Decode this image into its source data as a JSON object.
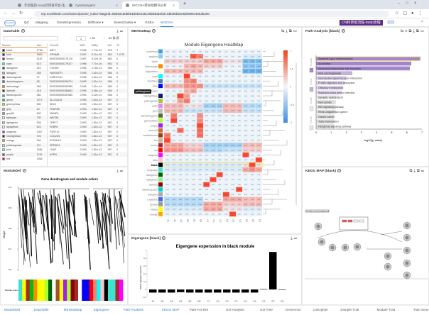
{
  "browser": {
    "tabs": [
      "华创医药-nova云转录平台-生...",
      "CytoNavigator",
      "WGCNA转录组模块分析"
    ],
    "url": "erp.novelbrain.com/transcriptome_index?stageId=65b0aca0bb91805e236c26b9&taskId=65b35b32e5d4908c4563b260"
  },
  "nav": {
    "logo": "Novel Brain",
    "items": [
      "QC",
      "Mapping",
      "GeneExpression",
      "DiffGene ▾",
      "SeriesCluster ▾",
      "GSEA",
      "WGCNA"
    ],
    "banner": "CN转录组流程-fastp流程",
    "back": "返回"
  },
  "datatable": {
    "title": "DataTable",
    "page": "1",
    "total_pages": "/ 35",
    "page_size": "50 条/页",
    "module_headers": [
      "Module",
      "Size"
    ],
    "modules": [
      [
        "black",
        "1798",
        "#000000"
      ],
      [
        "blue",
        "3900",
        "#0000ff"
      ],
      [
        "brown",
        "3187",
        "#a52a2a"
      ],
      [
        "cyan",
        "613",
        "#00ffff"
      ],
      [
        "darkgreen",
        "421",
        "#006400"
      ],
      [
        "darkgrey",
        "339",
        "#a9a9a9"
      ],
      [
        "darkmagenta",
        "47",
        "#8b008b"
      ],
      [
        "darkolivegreen",
        "83",
        "#556b2f"
      ],
      [
        "darkorange",
        "266",
        "#ff8c00"
      ],
      [
        "darkred",
        "418",
        "#8b0000"
      ],
      [
        "darkturquoise",
        "382",
        "#00ced1"
      ],
      [
        "green",
        "1977",
        "#00c000"
      ],
      [
        "greenyellow",
        "530",
        "#adff2f"
      ],
      [
        "grey",
        "40",
        "#bebebe"
      ],
      [
        "grey60",
        "600",
        "#999999"
      ],
      [
        "lightcyan",
        "700",
        "#e0ffff"
      ],
      [
        "lightgreen",
        "535",
        "#90ee90"
      ],
      [
        "lightyellow",
        "522",
        "#ffffe0"
      ],
      [
        "magenta",
        "1307",
        "#ff00ff"
      ],
      [
        "midnightblue",
        "723",
        "#191970"
      ],
      [
        "orange",
        "240",
        "#ffa500"
      ],
      [
        "paleturquoise",
        "111",
        "#afeeee"
      ],
      [
        "pink",
        "1186",
        "#ffc0cb"
      ],
      [
        "purple",
        "1130",
        "#a020f0"
      ],
      [
        "red",
        "1954",
        "#ff0000"
      ]
    ],
    "gene_headers": [
      "GeneID",
      "kME",
      "kMEp",
      "kIN",
      "AT"
    ],
    "genes": [
      [
        "WIF1",
        "0.998",
        "1.74e-13",
        "976",
        "0"
      ],
      [
        "GPNMB",
        "0.997",
        "5.21e-16",
        "962",
        "7.1276"
      ],
      [
        "ENSG00000275178",
        "0.997",
        "5.32e-16",
        "963",
        "0"
      ],
      [
        "ENSG00000276327",
        "0.996",
        "7.71e-16",
        "963",
        "0"
      ],
      [
        "F3X9A7",
        "0.995",
        "2.15e-14",
        "968",
        "0"
      ],
      [
        "FAM7B1P1",
        "0.995",
        "1.61e-14",
        "956",
        "0"
      ],
      [
        "GLRU-AS1",
        "0.995",
        "1.61e-14",
        "956",
        "0"
      ],
      [
        "ENSG00000266274",
        "0.995",
        "1.61e-14",
        "956",
        "0"
      ],
      [
        "ENSG00000250955",
        "0.995",
        "1.61e-14",
        "956",
        "0"
      ],
      [
        "ENSG00000286682",
        "0.995",
        "3.46e-14",
        "949",
        "0"
      ],
      [
        "ENSG00000287685",
        "0.994",
        "4.32e-14",
        "948",
        "0"
      ],
      [
        "SLC22A16",
        "0.993",
        "1.81e-13",
        "957",
        "0"
      ],
      [
        "SELE",
        "0.993",
        "1.81e-13",
        "957",
        "0"
      ],
      [
        "TRAF2B",
        "0.993",
        "1.81e-13",
        "957",
        "0"
      ],
      [
        "MAMRL",
        "0.993",
        "1.81e-13",
        "957",
        "0"
      ],
      [
        "WNT8A",
        "0.993",
        "1.81e-13",
        "957",
        "0"
      ],
      [
        "TRPC7",
        "0.993",
        "1.81e-13",
        "957",
        "0"
      ],
      [
        "FKBP6",
        "0.993",
        "1.81e-13",
        "957",
        "0"
      ],
      [
        "P2RY10",
        "0.993",
        "1.81e-13",
        "957",
        "0"
      ],
      [
        "C22orf21",
        "0.993",
        "1.81e-13",
        "957",
        "0"
      ],
      [
        "PCDH11X",
        "0.993",
        "1.81e-13",
        "957",
        "0"
      ],
      [
        "KRRDD1",
        "0.993",
        "1.81e-13",
        "957",
        "0"
      ],
      [
        "LHAF",
        "0.993",
        "1.81e-13",
        "957",
        "0"
      ],
      [
        "ASPN",
        "0.993",
        "1.81e-13",
        "957",
        "0"
      ]
    ]
  },
  "moduledef": {
    "title": "ModuleDef",
    "plot_title": "Gene dendrogram and module colors",
    "ylabel": "Height",
    "yticks": [
      "1.0",
      "0.9",
      "0.8",
      "0.7",
      "0.6"
    ],
    "strip_label": "Module colors",
    "strip": [
      "#40e0d0",
      "#ffff00",
      "#a52a2a",
      "#00c000",
      "#ff8c00",
      "#ffff00",
      "#ffff00",
      "#adff2f",
      "#006400",
      "#ffffff",
      "#a0522d",
      "#ffff00",
      "#a020f0",
      "#adff2f",
      "#8b0000",
      "#a52a2a",
      "#ffffff",
      "#0000ff",
      "#0000ff",
      "#ff0000",
      "#fa8072",
      "#00ffff",
      "#ffc0cb",
      "#000000",
      "#40e0d0",
      "#40e0d0",
      "#a52a2a",
      "#ff00ff"
    ]
  },
  "heatmap": {
    "title": "MEHeatMap",
    "plot_title": "Module Eigengene HeatMap",
    "tooltip": "yellowgreen",
    "highlight_row": "black",
    "columns": [
      "A1",
      "A2",
      "A3",
      "B1",
      "B2",
      "B3",
      "C1",
      "C2",
      "C3",
      "D1",
      "D2",
      "D3",
      "E1",
      "E2",
      "E3"
    ],
    "colorbar_ticks": [
      "1",
      "0.5",
      "0",
      "-0.5",
      "-1"
    ],
    "rows": [
      {
        "name": "undefined",
        "color": "#3da1ea",
        "v": [
          0,
          0,
          0,
          0,
          0,
          0,
          0,
          0,
          0,
          0,
          0,
          0,
          0,
          0,
          0
        ]
      },
      {
        "name": "skyblue",
        "color": "#87ceeb",
        "v": [
          0,
          0,
          0,
          0,
          0.8,
          0.6,
          0,
          0,
          0,
          0,
          0,
          0,
          -0.1,
          -0.1,
          -0.1
        ]
      },
      {
        "name": "white",
        "color": "#ffffff",
        "v": [
          0.2,
          0.2,
          0.2,
          0.2,
          0.2,
          0.2,
          0.4,
          0.4,
          0.4,
          0.1,
          0.1,
          0.1,
          -0.6,
          -0.6,
          -0.6
        ]
      },
      {
        "name": "darkorange",
        "color": "#ff8c00",
        "v": [
          0,
          0,
          0,
          0.3,
          0.4,
          0.3,
          0.2,
          0.2,
          0.2,
          0,
          0,
          0,
          -0.5,
          -0.5,
          -0.5
        ]
      },
      {
        "name": "lightyellow",
        "color": "#ffffe0",
        "v": [
          0.3,
          0.3,
          0.3,
          0.3,
          0.3,
          0.3,
          0,
          0,
          0,
          0,
          0,
          0,
          -0.7,
          -0.7,
          -0.7
        ]
      },
      {
        "name": "cyan",
        "color": "#00ffff",
        "v": [
          0,
          0,
          0,
          0.9,
          0,
          0,
          0,
          0,
          0,
          0,
          0,
          0,
          0,
          0,
          0
        ]
      },
      {
        "name": "steelblue",
        "color": "#4682b4",
        "v": [
          0,
          0,
          0,
          0.5,
          0.6,
          0,
          0,
          0,
          0,
          0,
          0,
          0,
          0,
          0,
          0
        ]
      },
      {
        "name": "blue",
        "color": "#0000ff",
        "v": [
          0.3,
          0.3,
          0.3,
          0.5,
          0.5,
          0.5,
          -0.2,
          -0.2,
          -0.2,
          -0.2,
          -0.2,
          -0.2,
          -0.2,
          -0.2,
          -0.2
        ]
      },
      {
        "name": "lightcyan",
        "color": "#e0ffff",
        "v": [
          0,
          0,
          0,
          0.3,
          0.4,
          0,
          0,
          0,
          0,
          0,
          0,
          0,
          0,
          0,
          0
        ]
      },
      {
        "name": "midnightblue",
        "color": "#191970",
        "v": [
          0,
          0,
          0.9,
          0.4,
          0,
          0,
          0,
          0,
          0,
          0,
          0,
          0,
          0,
          0,
          0
        ]
      },
      {
        "name": "yellowgreen",
        "color": "#9acd32",
        "v": [
          0,
          0,
          0.4,
          0.6,
          0,
          0,
          0,
          0,
          0,
          0,
          0,
          0,
          0,
          0,
          0
        ]
      },
      {
        "name": "violet",
        "color": "#ee82ee",
        "v": [
          0.3,
          0.3,
          0.3,
          0.1,
          0.1,
          0.1,
          -0.4,
          -0.4,
          -0.4,
          0.3,
          0.3,
          0.3,
          -0.3,
          -0.3,
          -0.3
        ]
      },
      {
        "name": "grey",
        "color": "#bebebe",
        "v": [
          0.3,
          0.3,
          0.3,
          -0.2,
          -0.2,
          -0.2,
          -0.2,
          -0.2,
          -0.2,
          0.3,
          0.3,
          0.3,
          -0.2,
          -0.2,
          -0.2
        ]
      },
      {
        "name": "darkolivegreen",
        "color": "#556b2f",
        "v": [
          0,
          0.6,
          0,
          0,
          0,
          0.5,
          0,
          0,
          0,
          0,
          0,
          0,
          0,
          0,
          0
        ]
      },
      {
        "name": "greenyellow",
        "color": "#adff2f",
        "v": [
          0,
          0.9,
          0,
          0,
          0,
          0.5,
          0,
          0,
          0,
          0,
          0,
          0,
          0,
          0,
          0
        ]
      },
      {
        "name": "purple",
        "color": "#a020f0",
        "v": [
          0,
          0,
          0,
          0,
          0,
          0.9,
          0,
          0,
          0,
          0,
          0,
          0,
          0,
          0,
          0
        ]
      },
      {
        "name": "sienna3",
        "color": "#cd6839",
        "v": [
          0,
          0,
          0.7,
          0,
          0,
          0.7,
          0,
          0,
          0,
          0,
          0,
          0,
          0,
          0,
          0
        ]
      },
      {
        "name": "saddlebrown",
        "color": "#8b4513",
        "v": [
          0.6,
          0,
          0,
          0,
          0,
          0.7,
          0,
          0,
          0,
          0,
          0,
          0,
          0,
          0,
          0
        ]
      },
      {
        "name": "tan",
        "color": "#d2b48c",
        "v": [
          0.9,
          0,
          0,
          0,
          0,
          0,
          0,
          0,
          0,
          0,
          0,
          0,
          0,
          0,
          0
        ]
      },
      {
        "name": "brown",
        "color": "#a52a2a",
        "v": [
          0.4,
          0.4,
          0.4,
          0.2,
          0.2,
          0.2,
          -0.4,
          -0.4,
          -0.4,
          -0.4,
          -0.4,
          -0.4,
          0.3,
          0.3,
          0.3
        ]
      },
      {
        "name": "red",
        "color": "#ff0000",
        "v": [
          0.5,
          0.5,
          0.5,
          0.3,
          0.3,
          0.3,
          -0.3,
          -0.3,
          -0.3,
          -0.2,
          -0.2,
          -0.2,
          0.2,
          0.2,
          0.2
        ]
      },
      {
        "name": "magenta",
        "color": "#ff00ff",
        "v": [
          0,
          0,
          0,
          0,
          0,
          0,
          0,
          0,
          0,
          0,
          0,
          0,
          0.9,
          0,
          0
        ]
      },
      {
        "name": "pink",
        "color": "#ffc0cb",
        "v": [
          0,
          0,
          0,
          0,
          0,
          0,
          0,
          0,
          0,
          0,
          0,
          0,
          0,
          0,
          0.9
        ]
      },
      {
        "name": "black",
        "color": "#000000",
        "v": [
          -0.1,
          -0.1,
          -0.1,
          -0.1,
          -0.1,
          -0.1,
          -0.1,
          -0.1,
          -0.1,
          -0.1,
          -0.1,
          -0.1,
          0.1,
          0.9,
          0.1
        ]
      },
      {
        "name": "turquoise",
        "color": "#40e0d0",
        "v": [
          -0.1,
          -0.1,
          -0.1,
          -0.1,
          -0.1,
          -0.1,
          -0.1,
          -0.1,
          -0.1,
          -0.1,
          -0.1,
          -0.1,
          0.4,
          0.5,
          0.4
        ]
      },
      {
        "name": "darkgreen",
        "color": "#006400",
        "v": [
          0,
          0,
          0,
          0,
          0,
          0,
          0,
          0,
          0.9,
          0,
          0,
          0,
          0,
          0,
          0
        ]
      },
      {
        "name": "lightgreen",
        "color": "#90ee90",
        "v": [
          0,
          0,
          0,
          0,
          0,
          0,
          0,
          0.9,
          0,
          0,
          0,
          0,
          0,
          0,
          0
        ]
      },
      {
        "name": "darkred",
        "color": "#8b0000",
        "v": [
          0,
          0,
          0,
          0,
          0,
          0,
          0.9,
          0,
          0,
          0,
          0,
          0,
          0,
          0,
          0
        ]
      },
      {
        "name": "darkturquoise",
        "color": "#00ced1",
        "v": [
          0,
          0,
          0,
          0,
          0,
          0,
          0,
          0,
          0,
          0,
          0,
          0.9,
          0,
          0,
          0
        ]
      },
      {
        "name": "darkgrey",
        "color": "#a9a9a9",
        "v": [
          0,
          0,
          0,
          0,
          0,
          0,
          0,
          0,
          0,
          0.9,
          0,
          0,
          0,
          0,
          0
        ]
      },
      {
        "name": "royalblue",
        "color": "#4169e1",
        "v": [
          -0.3,
          -0.3,
          -0.3,
          -0.3,
          -0.3,
          -0.3,
          0,
          0,
          0,
          0.4,
          0.4,
          0.4,
          0.3,
          0.3,
          0.3
        ]
      },
      {
        "name": "grey60",
        "color": "#999999",
        "v": [
          -0.3,
          -0.3,
          -0.3,
          -0.3,
          -0.3,
          -0.3,
          0.4,
          0.4,
          0.4,
          0.2,
          0.2,
          0.2,
          0.3,
          0.3,
          0.3
        ]
      },
      {
        "name": "yellow",
        "color": "#ffff00",
        "v": [
          -0.1,
          -0.1,
          -0.1,
          -0.1,
          -0.1,
          -0.1,
          0.4,
          0.4,
          0.4,
          0.1,
          0.1,
          0.1,
          -0.1,
          -0.1,
          -0.1
        ]
      },
      {
        "name": "orange",
        "color": "#ffa500",
        "v": [
          0,
          0,
          0,
          0,
          0,
          0,
          0,
          0,
          0,
          0,
          0.9,
          0,
          0,
          0,
          0
        ]
      }
    ]
  },
  "eigengene": {
    "title": "Eigengene [black]",
    "chart_data": {
      "type": "bar",
      "title": "Eigengene experssion in black module",
      "ylabel": "Module eigengene expression",
      "categories": [
        "A1",
        "A2",
        "A3",
        "B1",
        "B2",
        "B3",
        "C1",
        "C2",
        "C3",
        "D1",
        "D2",
        "D3",
        "E1",
        "E2",
        "E3"
      ],
      "values": [
        -0.08,
        -0.08,
        -0.08,
        -0.07,
        -0.08,
        -0.08,
        -0.08,
        -0.08,
        -0.08,
        -0.08,
        -0.08,
        -0.08,
        0.01,
        0.96,
        -0.01
      ],
      "ylim": [
        -0.2,
        1
      ],
      "yticks": [
        "1",
        "0.8",
        "0.6",
        "0.4",
        "0.2",
        "0",
        "-0.2"
      ]
    }
  },
  "path": {
    "title": "Path-Analysis [black]",
    "chart_data": {
      "type": "bar",
      "orientation": "horizontal",
      "xlabel": "-log10(p value)",
      "xlim": [
        0,
        7
      ],
      "xticks": [
        "0",
        "1",
        "2",
        "3",
        "4",
        "5",
        "6",
        "7"
      ],
      "legend": [
        "P<0.001",
        "P<0.01",
        "P<0.05",
        "P>0.05"
      ],
      "categories": [
        "Systemic lupus erythematosus",
        "Alcoholism",
        "Neutrophil extracellular trap formation",
        "Viral carcinogenesis",
        "Neuroactive ligand-receptor interaction",
        "Protein digestion and absorption",
        "Olfactory transduction",
        "Staphylococcus aureus infection",
        "Synaptic vesicle cycle",
        "Necroptosis",
        "Wnt signaling pathway",
        "Renin-angiotensin system",
        "Gastric cancer",
        "Taste transduction",
        "Hedgehog signaling pathway"
      ],
      "values": [
        6.9,
        6.3,
        6.2,
        2.4,
        2.0,
        1.9,
        1.8,
        1.7,
        1.5,
        1.3,
        1.3,
        1.3,
        1.2,
        1.2,
        1.2
      ],
      "colors": [
        "#a385c9",
        "#a385c9",
        "#a385c9",
        "#c3b0dd",
        "#ddd3ea",
        "#ddd3ea",
        "#ddd3ea",
        "#ddd3ea",
        "#e6e6e6",
        "#dcdcdc",
        "#dcdcdc",
        "#dcdcdc",
        "#dcdcdc",
        "#dcdcdc",
        "#dcdcdc"
      ]
    }
  },
  "kegg": {
    "title": "KEGG MAP [black]",
    "map_label": "SYSTEMIC LUPUS ERYTHEMATOSUS"
  },
  "bottom_tabs": [
    "ModuleDef",
    "DataTable",
    "MEHeatMap",
    "Eigengene",
    "Path-Analysis",
    "KEGG MAP",
    "Path-Act-Net",
    "GO-Analysis",
    "GO-Tree",
    "GeneAnno",
    "CoExpNet",
    "Sample-Trait",
    "Module-Trait",
    "Trait Gene"
  ]
}
